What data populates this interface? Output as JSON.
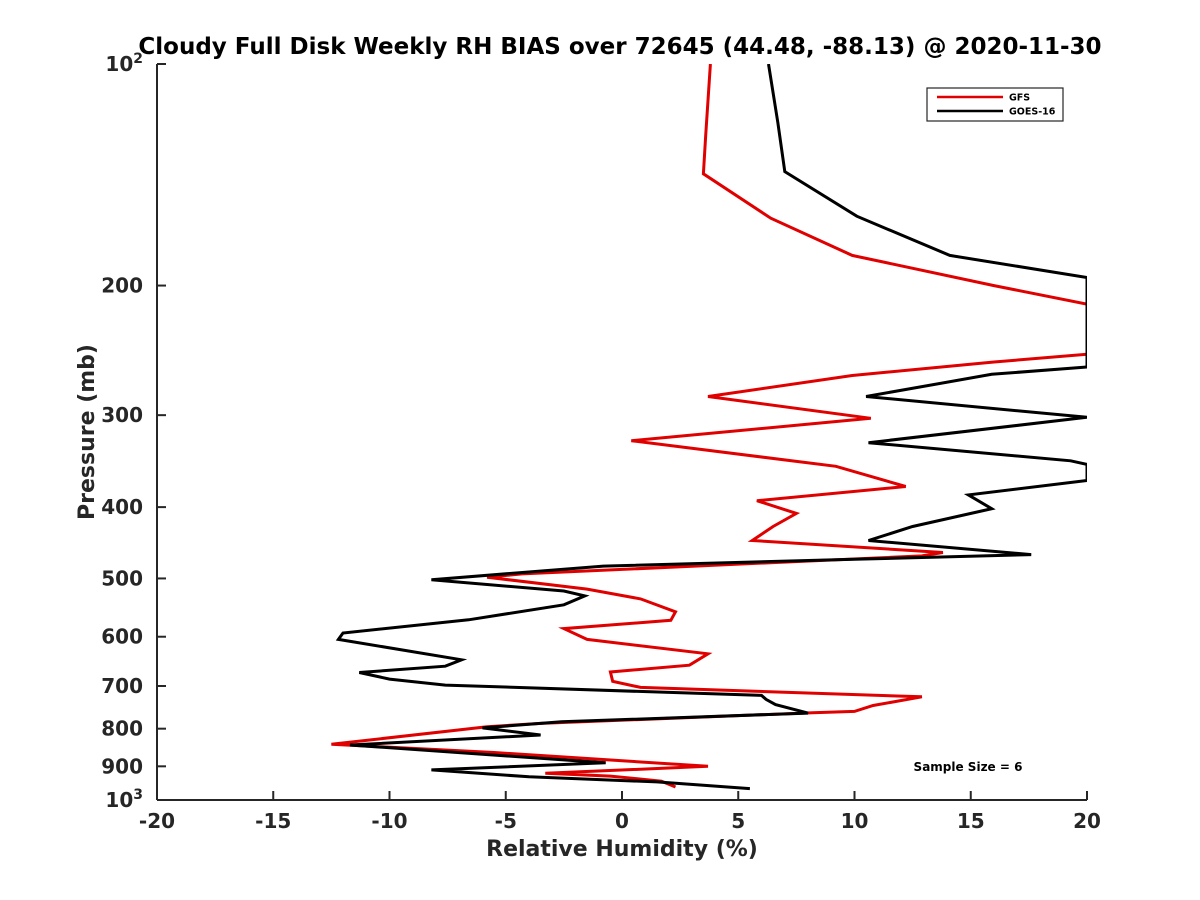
{
  "chart_data": {
    "type": "line",
    "title": "Cloudy Full Disk Weekly RH BIAS over 72645 (44.48, -88.13) @ 2020-11-30",
    "xlabel": "Relative Humidity (%)",
    "ylabel": "Pressure (mb)",
    "xlim": [
      -20,
      20
    ],
    "ylim": [
      100,
      1000
    ],
    "yscale": "log",
    "y_reversed": true,
    "x_ticks": [
      "-20",
      "-15",
      "-10",
      "-5",
      "0",
      "5",
      "10",
      "15",
      "20"
    ],
    "y_ticks": [
      {
        "value": 100,
        "base": "10",
        "exp": "2"
      },
      {
        "value": 200,
        "label": "200"
      },
      {
        "value": 300,
        "label": "300"
      },
      {
        "value": 400,
        "label": "400"
      },
      {
        "value": 500,
        "label": "500"
      },
      {
        "value": 600,
        "label": "600"
      },
      {
        "value": 700,
        "label": "700"
      },
      {
        "value": 800,
        "label": "800"
      },
      {
        "value": 900,
        "label": "900"
      },
      {
        "value": 1000,
        "base": "10",
        "exp": "3"
      }
    ],
    "grid": false,
    "legend_position": "top-right",
    "annotation": "Sample Size = 6",
    "series": [
      {
        "name": "GFS",
        "color": "#e00000",
        "points": [
          [
            3.8,
            100
          ],
          [
            3.6,
            125
          ],
          [
            3.5,
            141
          ],
          [
            6.4,
            162
          ],
          [
            9.9,
            182
          ],
          [
            16.0,
            200
          ],
          [
            20.0,
            212
          ],
          [
            20.0,
            248
          ],
          [
            16.0,
            254
          ],
          [
            9.9,
            265
          ],
          [
            3.7,
            283
          ],
          [
            10.7,
            303
          ],
          [
            0.4,
            325
          ],
          [
            9.2,
            352
          ],
          [
            12.2,
            375
          ],
          [
            5.8,
            392
          ],
          [
            7.5,
            408
          ],
          [
            6.5,
            425
          ],
          [
            5.6,
            444
          ],
          [
            13.8,
            461
          ],
          [
            12.9,
            466
          ],
          [
            -4.3,
            493
          ],
          [
            -5.8,
            498
          ],
          [
            -1.5,
            517
          ],
          [
            0.8,
            533
          ],
          [
            2.3,
            555
          ],
          [
            2.1,
            570
          ],
          [
            -2.5,
            585
          ],
          [
            -1.5,
            605
          ],
          [
            3.7,
            633
          ],
          [
            2.9,
            656
          ],
          [
            -0.5,
            670
          ],
          [
            -0.4,
            690
          ],
          [
            0.8,
            703
          ],
          [
            12.9,
            724
          ],
          [
            10.8,
            744
          ],
          [
            10.0,
            758
          ],
          [
            8.2,
            761
          ],
          [
            -3.5,
            787
          ],
          [
            -5.8,
            795
          ],
          [
            -12.5,
            840
          ],
          [
            -5.5,
            862
          ],
          [
            3.7,
            900
          ],
          [
            -3.3,
            920
          ],
          [
            -0.5,
            928
          ],
          [
            1.7,
            943
          ],
          [
            2.3,
            960
          ]
        ]
      },
      {
        "name": "GOES-16",
        "color": "#000000",
        "points": [
          [
            6.3,
            100
          ],
          [
            6.7,
            120
          ],
          [
            7.0,
            140
          ],
          [
            10.1,
            161
          ],
          [
            14.1,
            182
          ],
          [
            20.0,
            195
          ],
          [
            20.0,
            258
          ],
          [
            15.9,
            264
          ],
          [
            10.5,
            283
          ],
          [
            20.0,
            302
          ],
          [
            10.6,
            327
          ],
          [
            19.3,
            346
          ],
          [
            20.0,
            350
          ],
          [
            20.0,
            368
          ],
          [
            14.9,
            385
          ],
          [
            15.9,
            402
          ],
          [
            12.5,
            425
          ],
          [
            10.6,
            444
          ],
          [
            17.6,
            464
          ],
          [
            10.0,
            471
          ],
          [
            -0.8,
            481
          ],
          [
            -8.2,
            502
          ],
          [
            -2.5,
            520
          ],
          [
            -1.6,
            528
          ],
          [
            -2.5,
            543
          ],
          [
            -6.6,
            569
          ],
          [
            -12.0,
            593
          ],
          [
            -12.2,
            605
          ],
          [
            -6.9,
            645
          ],
          [
            -7.6,
            658
          ],
          [
            -11.3,
            671
          ],
          [
            -10.0,
            685
          ],
          [
            -7.6,
            698
          ],
          [
            6.0,
            721
          ],
          [
            6.2,
            730
          ],
          [
            6.6,
            742
          ],
          [
            8.0,
            762
          ],
          [
            -2.6,
            783
          ],
          [
            -6.0,
            798
          ],
          [
            -3.5,
            816
          ],
          [
            -11.7,
            842
          ],
          [
            -0.7,
            890
          ],
          [
            -8.2,
            910
          ],
          [
            -4.0,
            930
          ],
          [
            1.5,
            945
          ],
          [
            5.5,
            965
          ]
        ]
      }
    ]
  }
}
